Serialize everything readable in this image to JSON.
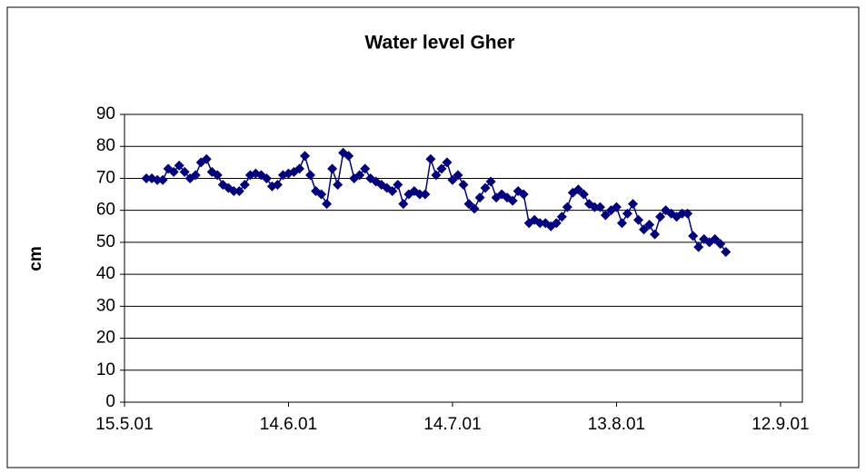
{
  "chart_data": {
    "type": "line",
    "title": "Water level Gher",
    "y_label": "cm",
    "x": [
      4,
      5,
      6,
      7,
      8,
      9,
      10,
      11,
      12,
      13,
      14,
      15,
      16,
      17,
      18,
      19,
      20,
      21,
      22,
      23,
      24,
      25,
      26,
      27,
      28,
      29,
      30,
      31,
      32,
      33,
      34,
      35,
      36,
      37,
      38,
      39,
      40,
      41,
      42,
      43,
      44,
      45,
      46,
      47,
      48,
      49,
      50,
      51,
      52,
      53,
      54,
      55,
      56,
      57,
      58,
      59,
      60,
      61,
      62,
      63,
      64,
      65,
      66,
      67,
      68,
      69,
      70,
      71,
      72,
      73,
      74,
      75,
      76,
      77,
      78,
      79,
      80,
      81,
      82,
      83,
      84,
      85,
      86,
      87,
      88,
      89,
      90,
      91,
      92,
      93,
      94,
      95,
      96,
      97,
      98,
      99,
      100,
      101,
      102,
      103,
      104,
      105,
      106,
      107,
      108,
      109,
      110
    ],
    "values": [
      70,
      70,
      69.5,
      69.5,
      73,
      72,
      74,
      72,
      70,
      71,
      75,
      76,
      72,
      71,
      68,
      67,
      66,
      66,
      68,
      71,
      71.5,
      71,
      70,
      67.5,
      68,
      71,
      71.5,
      72,
      73,
      77,
      71,
      66,
      65,
      62,
      73,
      68,
      78,
      77,
      70,
      71,
      73,
      70,
      69,
      68,
      67,
      66,
      68,
      62,
      65,
      66,
      65,
      65,
      76,
      71,
      73,
      75,
      69.5,
      71,
      68,
      62,
      60.5,
      64,
      67,
      69,
      64,
      65,
      64,
      63,
      66,
      65,
      56,
      57,
      56,
      56,
      55,
      56,
      58,
      61,
      65.5,
      66.5,
      65,
      62,
      61,
      61,
      58.5,
      60,
      61,
      56,
      59,
      62,
      57,
      54,
      55.5,
      52.5,
      58,
      60,
      59,
      58,
      59,
      59,
      52,
      48.5,
      51,
      50,
      51,
      49.5,
      47
    ],
    "color": "#000080",
    "xlim": [
      0,
      124
    ],
    "xticks": [
      {
        "value": 0,
        "label": "15.5.01"
      },
      {
        "value": 30,
        "label": "14.6.01"
      },
      {
        "value": 60,
        "label": "14.7.01"
      },
      {
        "value": 90,
        "label": "13.8.01"
      },
      {
        "value": 120,
        "label": "12.9.01"
      }
    ],
    "ylim": [
      0,
      90
    ],
    "yticks": [
      0,
      10,
      20,
      30,
      40,
      50,
      60,
      70,
      80,
      90
    ],
    "grid": true
  }
}
